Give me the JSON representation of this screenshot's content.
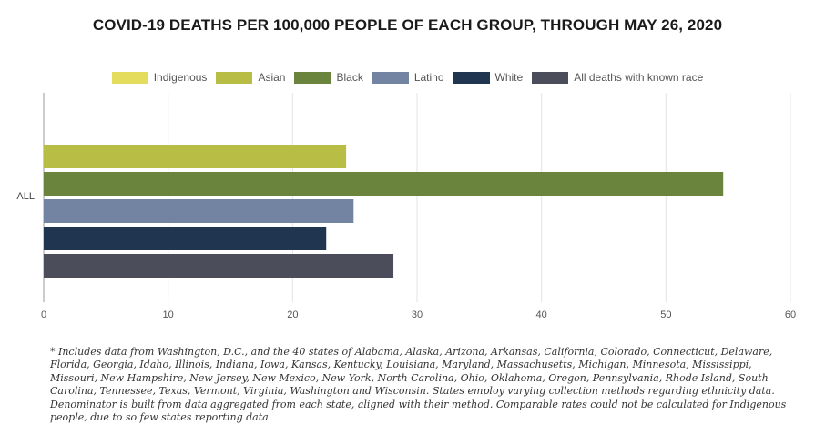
{
  "title": "COVID-19 DEATHS PER 100,000 PEOPLE OF EACH GROUP, THROUGH MAY 26, 2020",
  "footnote": "* Includes data from Washington, D.C., and the 40 states of Alabama, Alaska, Arizona, Arkansas, California, Colorado, Connecticut, Delaware, Florida, Georgia, Idaho, Illinois, Indiana, Iowa, Kansas, Kentucky, Louisiana, Maryland, Massachusetts, Michigan, Minnesota, Mississippi, Missouri, New Hampshire, New Jersey, New Mexico, New York, North Carolina, Ohio, Oklahoma, Oregon, Pennsylvania, Rhode Island, South Carolina, Tennessee, Texas, Vermont, Virginia, Washington and Wisconsin. States employ varying collection methods regarding ethnicity data. Denominator is built from data aggregated from each state, aligned with their method. Comparable rates could not be calculated for Indigenous people, due to so few states reporting data.",
  "chart_data": {
    "type": "bar",
    "orientation": "horizontal",
    "categories": [
      "ALL"
    ],
    "series": [
      {
        "name": "Indigenous",
        "color": "#e3dc5c",
        "values": [
          null
        ]
      },
      {
        "name": "Asian",
        "color": "#b8be45",
        "values": [
          24.3
        ]
      },
      {
        "name": "Black",
        "color": "#6a843d",
        "values": [
          54.6
        ]
      },
      {
        "name": "Latino",
        "color": "#7384a2",
        "values": [
          24.9
        ]
      },
      {
        "name": "White",
        "color": "#1f3550",
        "values": [
          22.7
        ]
      },
      {
        "name": "All deaths with known race",
        "color": "#4c4d5b",
        "values": [
          28.1
        ]
      }
    ],
    "xlim": [
      0,
      60
    ],
    "xticks": [
      0,
      10,
      20,
      30,
      40,
      50,
      60
    ],
    "grid": true,
    "legend": "top-center"
  }
}
